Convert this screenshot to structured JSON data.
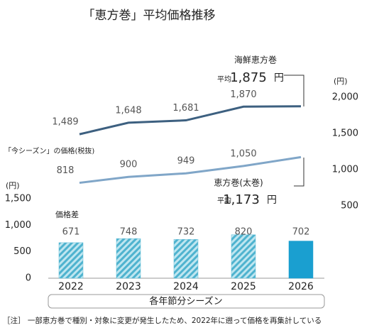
{
  "chart_data": [
    {
      "type": "line",
      "title": "「恵方巻」平均価格推移",
      "subtitle": "「今シーズン」の価格(税抜)",
      "y_label": "(円)",
      "avg_label": "平均",
      "unit": "円",
      "ylim": [
        500,
        2000
      ],
      "yticks": [
        {
          "value": 2000,
          "label": "2,000"
        },
        {
          "value": 1500,
          "label": "1,500"
        },
        {
          "value": 1000,
          "label": "1,000"
        },
        500
      ],
      "series": [
        {
          "name": "海鮮恵方巻",
          "color": "#3d6080",
          "values": [
            1489,
            1648,
            1681,
            1870,
            1875
          ],
          "value_labels": [
            "1,489",
            "1,648",
            "1,681",
            "1,870",
            "1,875"
          ]
        },
        {
          "name": "恵方巻(太巻)",
          "color": "#80a6c8",
          "values": [
            818,
            900,
            949,
            1050,
            1173
          ],
          "value_labels": [
            "818",
            "900",
            "949",
            "1,050",
            "1,173"
          ]
        }
      ]
    },
    {
      "type": "bar",
      "series_label": "価格差",
      "y_label": "(円)",
      "x_label": "各年節分シーズン",
      "note": "［注］ 一部恵方巻で種別・対象に変更が発生したため、2022年に遡って価格を再集計している",
      "categories": [
        "2022",
        "2023",
        "2024",
        "2025",
        "2026"
      ],
      "values": [
        671,
        748,
        732,
        820,
        702
      ],
      "colors": [
        "#5bbcd6",
        "#5bbcd6",
        "#5bbcd6",
        "#5bbcd6",
        "#1a9fd0"
      ],
      "hatch": [
        true,
        true,
        true,
        true,
        false
      ],
      "ylim": [
        0,
        1500
      ],
      "yticks": [
        0,
        500,
        {
          "value": 1000,
          "label": "1,000"
        },
        {
          "value": 1500,
          "label": "1,500"
        }
      ]
    }
  ]
}
